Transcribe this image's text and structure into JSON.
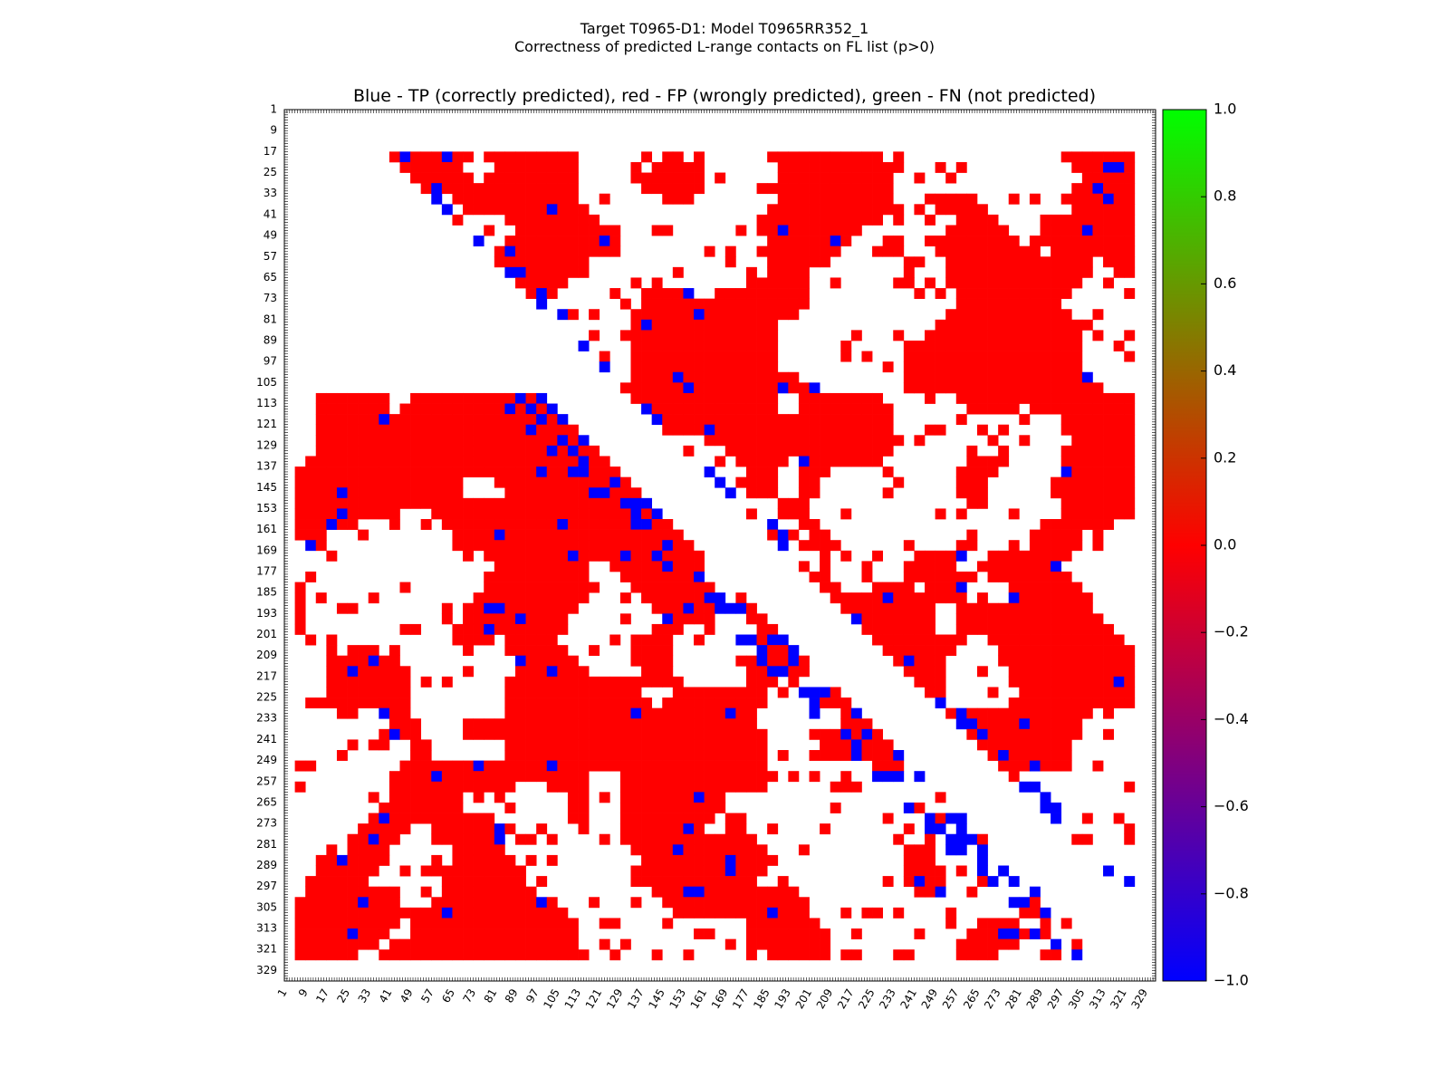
{
  "chart_data": {
    "type": "heatmap",
    "title": "Target T0965-D1: Model T0965RR352_1",
    "subtitle": "Correctness of predicted L-range contacts on FL list (p>0)",
    "axes_title": "Blue - TP (correctly predicted), red - FP (wrongly predicted), green - FN (not predicted)",
    "xlabel": "",
    "ylabel": "",
    "residue_range": [
      1,
      332
    ],
    "x_tick_labels": [
      "1",
      "9",
      "17",
      "25",
      "33",
      "41",
      "49",
      "57",
      "65",
      "73",
      "81",
      "89",
      "97",
      "105",
      "113",
      "121",
      "129",
      "137",
      "145",
      "153",
      "161",
      "169",
      "177",
      "185",
      "193",
      "201",
      "209",
      "217",
      "225",
      "233",
      "241",
      "249",
      "257",
      "265",
      "273",
      "281",
      "289",
      "297",
      "305",
      "313",
      "321",
      "329"
    ],
    "y_tick_labels": [
      "1",
      "9",
      "17",
      "25",
      "33",
      "41",
      "49",
      "57",
      "65",
      "73",
      "81",
      "89",
      "97",
      "105",
      "113",
      "121",
      "129",
      "137",
      "145",
      "153",
      "161",
      "169",
      "177",
      "185",
      "193",
      "201",
      "209",
      "217",
      "225",
      "233",
      "241",
      "249",
      "257",
      "265",
      "273",
      "281",
      "289",
      "297",
      "305",
      "313",
      "321",
      "329"
    ],
    "colorbar": {
      "min": -1.0,
      "max": 1.0,
      "tick_labels": [
        "1.0",
        "0.8",
        "0.6",
        "0.4",
        "0.2",
        "0.0",
        "−0.2",
        "−0.4",
        "−0.6",
        "−0.8",
        "−1.0"
      ],
      "colors": [
        "#0000ff",
        "#ff0000",
        "#00ff00"
      ]
    },
    "legend": {
      "tp": "#0000ff",
      "fp": "#ff0000",
      "fn": "#00ff00"
    }
  }
}
